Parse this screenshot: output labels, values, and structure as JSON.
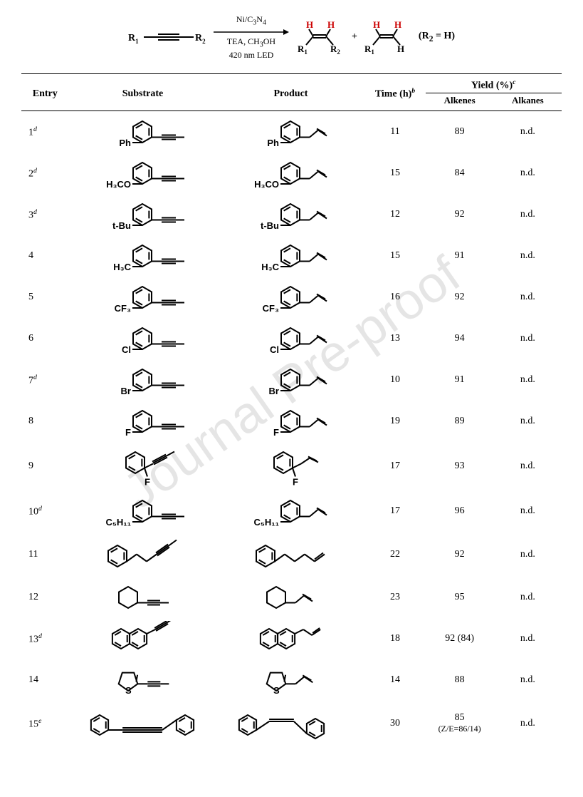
{
  "scheme": {
    "reactant_r1": "R",
    "reactant_r1_sub": "1",
    "reactant_r2": "R",
    "reactant_r2_sub": "2",
    "cond_line1_a": "Ni/C",
    "cond_line1_sub1": "3",
    "cond_line1_b": "N",
    "cond_line1_sub2": "4",
    "cond_line2_a": "TEA, CH",
    "cond_line2_sub": "3",
    "cond_line2_b": "OH",
    "cond_line3": "420 nm LED",
    "product_r1a": "R",
    "product_r1a_sub": "1",
    "product_r2a": "R",
    "product_r2a_sub": "2",
    "h_label": "H",
    "plus": "+",
    "product_r1b": "R",
    "product_r1b_sub": "1",
    "note_a": "(R",
    "note_sub": "2",
    "note_b": " = H)",
    "h_color": "#cc0000"
  },
  "headers": {
    "entry": "Entry",
    "substrate": "Substrate",
    "product": "Product",
    "time_a": "Time (h)",
    "time_sup": "b",
    "yield_a": "Yield (%)",
    "yield_sup": "c",
    "alkenes": "Alkenes",
    "alkanes": "Alkanes"
  },
  "rows": [
    {
      "entry": "1",
      "sup": "d",
      "sub_label": "Ph",
      "prod_label": "Ph",
      "time": "11",
      "alkenes": "89",
      "alkanes": "n.d.",
      "type": "para"
    },
    {
      "entry": "2",
      "sup": "d",
      "sub_label": "H₃CO",
      "prod_label": "H₃CO",
      "time": "15",
      "alkenes": "84",
      "alkanes": "n.d.",
      "type": "para"
    },
    {
      "entry": "3",
      "sup": "d",
      "sub_label": "t-Bu",
      "prod_label": "t-Bu",
      "time": "12",
      "alkenes": "92",
      "alkanes": "n.d.",
      "type": "para"
    },
    {
      "entry": "4",
      "sup": "",
      "sub_label": "H₃C",
      "prod_label": "H₃C",
      "time": "15",
      "alkenes": "91",
      "alkanes": "n.d.",
      "type": "para"
    },
    {
      "entry": "5",
      "sup": "",
      "sub_label": "CF₃",
      "prod_label": "CF₃",
      "time": "16",
      "alkenes": "92",
      "alkanes": "n.d.",
      "type": "para"
    },
    {
      "entry": "6",
      "sup": "",
      "sub_label": "Cl",
      "prod_label": "Cl",
      "time": "13",
      "alkenes": "94",
      "alkanes": "n.d.",
      "type": "para"
    },
    {
      "entry": "7",
      "sup": "d",
      "sub_label": "Br",
      "prod_label": "Br",
      "time": "10",
      "alkenes": "91",
      "alkanes": "n.d.",
      "type": "para"
    },
    {
      "entry": "8",
      "sup": "",
      "sub_label": "F",
      "prod_label": "F",
      "time": "19",
      "alkenes": "89",
      "alkanes": "n.d.",
      "type": "para"
    },
    {
      "entry": "9",
      "sup": "",
      "sub_label": "F",
      "prod_label": "F",
      "time": "17",
      "alkenes": "93",
      "alkanes": "n.d.",
      "type": "ortho"
    },
    {
      "entry": "10",
      "sup": "d",
      "sub_label": "C₅H₁₁",
      "prod_label": "C₅H₁₁",
      "time": "17",
      "alkenes": "96",
      "alkanes": "n.d.",
      "type": "para"
    },
    {
      "entry": "11",
      "sup": "",
      "sub_label": "",
      "prod_label": "",
      "time": "22",
      "alkenes": "92",
      "alkanes": "n.d.",
      "type": "phenylpropyl"
    },
    {
      "entry": "12",
      "sup": "",
      "sub_label": "",
      "prod_label": "",
      "time": "23",
      "alkenes": "95",
      "alkanes": "n.d.",
      "type": "cyclohexyl"
    },
    {
      "entry": "13",
      "sup": "d",
      "sub_label": "",
      "prod_label": "",
      "time": "18",
      "alkenes": "92 (84)",
      "alkanes": "n.d.",
      "type": "naphthyl"
    },
    {
      "entry": "14",
      "sup": "",
      "sub_label": "",
      "prod_label": "",
      "time": "14",
      "alkenes": "88",
      "alkanes": "n.d.",
      "type": "thienyl"
    },
    {
      "entry": "15",
      "sup": "e",
      "sub_label": "",
      "prod_label": "",
      "time": "30",
      "alkenes": "85\n(Z/E=86/14)",
      "alkanes": "n.d.",
      "type": "diphenyl"
    }
  ],
  "watermark": "Journal Pre-proof"
}
